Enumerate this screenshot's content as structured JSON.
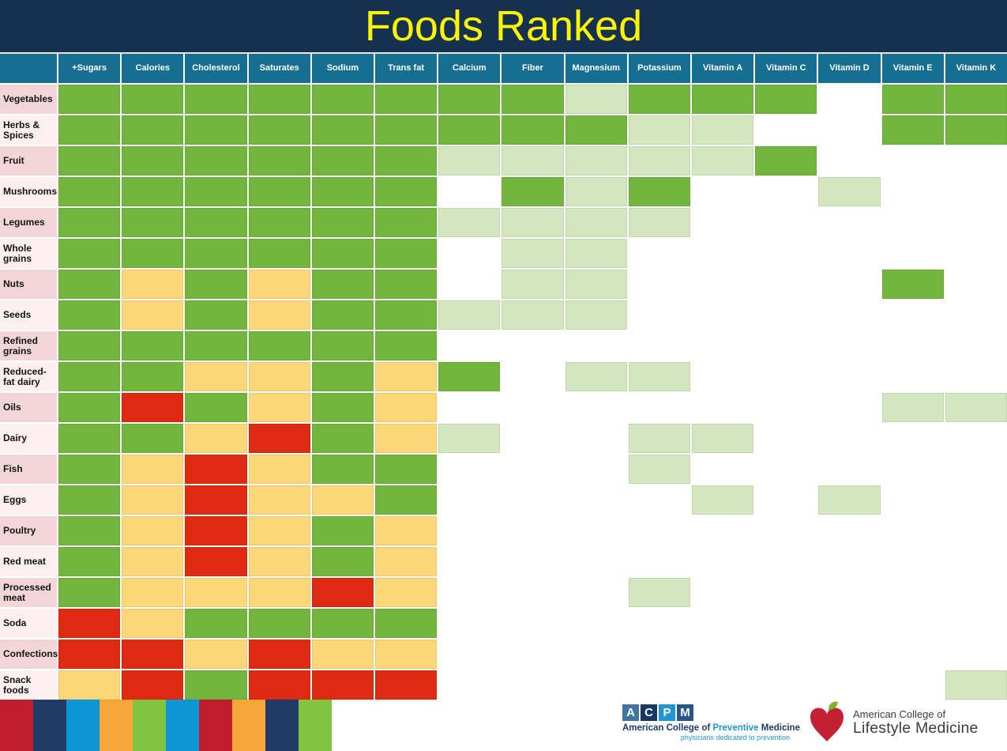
{
  "title": "Foods Ranked",
  "colors": {
    "banner_bg": "#15314f",
    "title_text": "#fdf403",
    "header_bg": "#166f90",
    "header_text": "#ffffff",
    "row_label_dark": "#f2d5d9",
    "row_label_light": "#fbeff0",
    "row_label_text": "#141414",
    "codes": {
      "G": "#72b640",
      "L": "#d2e7bd",
      "Y": "#fcd778",
      "R": "#dd2a10",
      "W": "#ffffff"
    }
  },
  "chart_data": {
    "type": "heatmap",
    "title": "Foods Ranked",
    "legend_position": "none",
    "grid": "white gaps between cells",
    "code_palette": {
      "G": "green",
      "L": "light-green",
      "Y": "yellow",
      "R": "red",
      "W": "white-empty"
    },
    "columns": [
      "+Sugars",
      "Calories",
      "Cholesterol",
      "Saturates",
      "Sodium",
      "Trans fat",
      "Calcium",
      "Fiber",
      "Magnesium",
      "Potassium",
      "Vitamin A",
      "Vitamin C",
      "Vitamin D",
      "Vitamin E",
      "Vitamin K"
    ],
    "header_corner": "",
    "rows": [
      {
        "label": "Vegetables",
        "values": [
          "G",
          "G",
          "G",
          "G",
          "G",
          "G",
          "G",
          "G",
          "L",
          "G",
          "G",
          "G",
          "W",
          "G",
          "G"
        ]
      },
      {
        "label": "Herbs & Spices",
        "values": [
          "G",
          "G",
          "G",
          "G",
          "G",
          "G",
          "G",
          "G",
          "G",
          "L",
          "L",
          "W",
          "W",
          "G",
          "G"
        ]
      },
      {
        "label": "Fruit",
        "values": [
          "G",
          "G",
          "G",
          "G",
          "G",
          "G",
          "L",
          "L",
          "L",
          "L",
          "L",
          "G",
          "W",
          "W",
          "W"
        ]
      },
      {
        "label": "Mushrooms",
        "values": [
          "G",
          "G",
          "G",
          "G",
          "G",
          "G",
          "W",
          "G",
          "L",
          "G",
          "W",
          "W",
          "L",
          "W",
          "W"
        ]
      },
      {
        "label": "Legumes",
        "values": [
          "G",
          "G",
          "G",
          "G",
          "G",
          "G",
          "L",
          "L",
          "L",
          "L",
          "W",
          "W",
          "W",
          "W",
          "W"
        ]
      },
      {
        "label": "Whole grains",
        "values": [
          "G",
          "G",
          "G",
          "G",
          "G",
          "G",
          "W",
          "L",
          "L",
          "W",
          "W",
          "W",
          "W",
          "W",
          "W"
        ]
      },
      {
        "label": "Nuts",
        "values": [
          "G",
          "Y",
          "G",
          "Y",
          "G",
          "G",
          "W",
          "L",
          "L",
          "W",
          "W",
          "W",
          "W",
          "G",
          "W"
        ]
      },
      {
        "label": "Seeds",
        "values": [
          "G",
          "Y",
          "G",
          "Y",
          "G",
          "G",
          "L",
          "L",
          "L",
          "W",
          "W",
          "W",
          "W",
          "W",
          "W"
        ]
      },
      {
        "label": "Refined grains",
        "values": [
          "G",
          "G",
          "G",
          "G",
          "G",
          "G",
          "W",
          "W",
          "W",
          "W",
          "W",
          "W",
          "W",
          "W",
          "W"
        ]
      },
      {
        "label": "Reduced-fat dairy",
        "values": [
          "G",
          "G",
          "Y",
          "Y",
          "G",
          "Y",
          "G",
          "W",
          "L",
          "L",
          "W",
          "W",
          "W",
          "W",
          "W"
        ]
      },
      {
        "label": "Oils",
        "values": [
          "G",
          "R",
          "G",
          "Y",
          "G",
          "Y",
          "W",
          "W",
          "W",
          "W",
          "W",
          "W",
          "W",
          "L",
          "L"
        ]
      },
      {
        "label": "Dairy",
        "values": [
          "G",
          "G",
          "Y",
          "R",
          "G",
          "Y",
          "L",
          "W",
          "W",
          "L",
          "L",
          "W",
          "W",
          "W",
          "W"
        ]
      },
      {
        "label": "Fish",
        "values": [
          "G",
          "Y",
          "R",
          "Y",
          "G",
          "G",
          "W",
          "W",
          "W",
          "L",
          "W",
          "W",
          "W",
          "W",
          "W"
        ]
      },
      {
        "label": "Eggs",
        "values": [
          "G",
          "Y",
          "R",
          "Y",
          "Y",
          "G",
          "W",
          "W",
          "W",
          "W",
          "L",
          "W",
          "L",
          "W",
          "W"
        ]
      },
      {
        "label": "Poultry",
        "values": [
          "G",
          "Y",
          "R",
          "Y",
          "G",
          "Y",
          "W",
          "W",
          "W",
          "W",
          "W",
          "W",
          "W",
          "W",
          "W"
        ]
      },
      {
        "label": "Red meat",
        "values": [
          "G",
          "Y",
          "R",
          "Y",
          "G",
          "Y",
          "W",
          "W",
          "W",
          "W",
          "W",
          "W",
          "W",
          "W",
          "W"
        ]
      },
      {
        "label": "Processed meat",
        "values": [
          "G",
          "Y",
          "Y",
          "Y",
          "R",
          "Y",
          "W",
          "W",
          "W",
          "L",
          "W",
          "W",
          "W",
          "W",
          "W"
        ]
      },
      {
        "label": "Soda",
        "values": [
          "R",
          "Y",
          "G",
          "G",
          "G",
          "G",
          "W",
          "W",
          "W",
          "W",
          "W",
          "W",
          "W",
          "W",
          "W"
        ]
      },
      {
        "label": "Confections",
        "values": [
          "R",
          "R",
          "Y",
          "R",
          "Y",
          "Y",
          "W",
          "W",
          "W",
          "W",
          "W",
          "W",
          "W",
          "W",
          "W"
        ]
      },
      {
        "label": "Snack foods",
        "values": [
          "Y",
          "R",
          "G",
          "R",
          "R",
          "R",
          "W",
          "W",
          "W",
          "W",
          "W",
          "W",
          "W",
          "W",
          "L"
        ]
      }
    ]
  },
  "footer": {
    "color_strip": [
      "#be1e2d",
      "#1f3b66",
      "#0e95d5",
      "#f4a636",
      "#82c341",
      "#0e95d5",
      "#be1e2d",
      "#f4a636",
      "#1f3b66",
      "#82c341"
    ],
    "acpm": {
      "letters": [
        "A",
        "C",
        "P",
        "M"
      ],
      "letter_colors": [
        "#41759f",
        "#173863",
        "#2196d3",
        "#27568c"
      ],
      "line1_part1": "American College of ",
      "line1_highlight": "Preventive",
      "line1_part2": " Medicine",
      "tagline": "physicians dedicated to prevention",
      "text_navy": "#1d3c6b",
      "text_blue": "#2196d3"
    },
    "aclm": {
      "line1": "American College of",
      "line2": "Lifestyle Medicine",
      "text_color": "#3d3d3d",
      "heart_red": "#c32032",
      "leaf_green": "#76b82a"
    }
  }
}
